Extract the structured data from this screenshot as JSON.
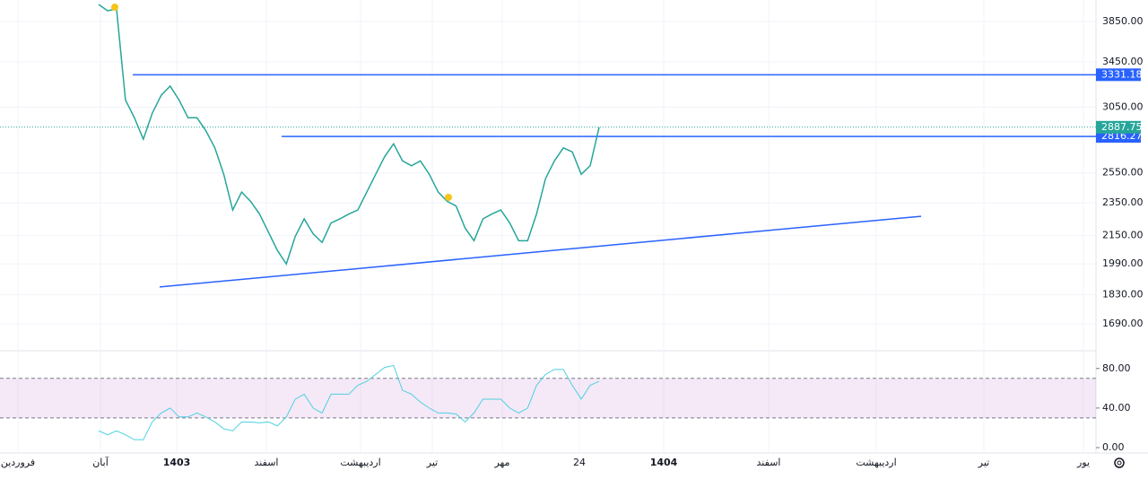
{
  "chart_data": [
    {
      "type": "line",
      "color": "#26a69a",
      "log_scale": true,
      "ylim": [
        1575,
        4083
      ],
      "yticks": [
        {
          "value": 3850,
          "label": "3850.00"
        },
        {
          "value": 3450,
          "label": "3450.00"
        },
        {
          "value": 3050,
          "label": "3050.00"
        },
        {
          "value": 2550,
          "label": "2550.00"
        },
        {
          "value": 2350,
          "label": "2350.00"
        },
        {
          "value": 2150,
          "label": "2150.00"
        },
        {
          "value": 1990,
          "label": "1990.00"
        },
        {
          "value": 1830,
          "label": "1830.00"
        },
        {
          "value": 1690,
          "label": "1690.00"
        }
      ],
      "values": [
        4033,
        3965,
        3985,
        3110,
        2963,
        2795,
        3000,
        3150,
        3230,
        3110,
        2963,
        2963,
        2860,
        2730,
        2540,
        2305,
        2420,
        2360,
        2280,
        2170,
        2065,
        1990,
        2145,
        2250,
        2160,
        2110,
        2225,
        2250,
        2280,
        2305,
        2420,
        2540,
        2665,
        2760,
        2635,
        2600,
        2635,
        2540,
        2420,
        2360,
        2330,
        2195,
        2120,
        2250,
        2280,
        2305,
        2225,
        2120,
        2120,
        2280,
        2510,
        2635,
        2730,
        2700,
        2540,
        2600,
        2887.75
      ],
      "levels": [
        {
          "value": 3331.18,
          "color": "#2962ff"
        },
        {
          "value": 2816.27,
          "color": "#2962ff"
        }
      ],
      "trend_line": [
        1869,
        2266
      ]
    },
    {
      "type": "line",
      "color": "#4dd0e1",
      "ylim": [
        0,
        97
      ],
      "band": [
        30,
        70
      ],
      "yticks": [
        {
          "value": 80,
          "label": "80.00"
        },
        {
          "value": 40,
          "label": "40.00"
        },
        {
          "value": 0,
          "label": "0.00"
        }
      ],
      "values": [
        17,
        13,
        17,
        13,
        8,
        8,
        26,
        35,
        40,
        31,
        31,
        35,
        31,
        26,
        19,
        17,
        26,
        26,
        25,
        26,
        22,
        31,
        49,
        54,
        40,
        35,
        54,
        54,
        54,
        63,
        67,
        74,
        81,
        83,
        58,
        54,
        46,
        40,
        35,
        35,
        34,
        26,
        35,
        49,
        49,
        49,
        40,
        35,
        40,
        63,
        74,
        79,
        79,
        63,
        49,
        63,
        67
      ]
    }
  ],
  "time_axis": [
    "فروردین",
    "آبان",
    "1403",
    "اسفند",
    "اردیبهشت",
    "تیر",
    "مهر",
    "24",
    "1404",
    "اسفند",
    "اردیبهشت",
    "تیر",
    "یور"
  ]
}
